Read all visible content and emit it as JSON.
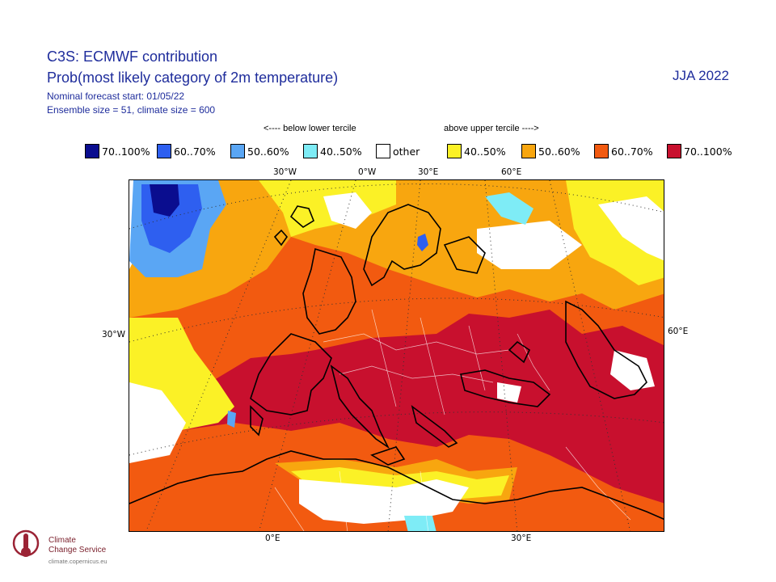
{
  "header": {
    "title_line1": "C3S: ECMWF contribution",
    "title_line2": "Prob(most likely category of 2m temperature)",
    "forecast_start": "Nominal forecast start: 01/05/22",
    "ensemble": "Ensemble size = 51, climate size = 600",
    "season": "JJA 2022"
  },
  "legend": {
    "below_label": "<---- below lower tercile",
    "above_label": "above upper tercile ---->",
    "items": [
      {
        "label": "70..100%",
        "color": "#0a0d8f"
      },
      {
        "label": "60..70%",
        "color": "#2e5ff0"
      },
      {
        "label": "50..60%",
        "color": "#5aa6f4"
      },
      {
        "label": "40..50%",
        "color": "#7eecf6"
      },
      {
        "label": "other",
        "color": "#ffffff"
      },
      {
        "label": "40..50%",
        "color": "#fbf126"
      },
      {
        "label": "50..60%",
        "color": "#f8a60f"
      },
      {
        "label": "60..70%",
        "color": "#f25a10"
      },
      {
        "label": "70..100%",
        "color": "#c8102e"
      }
    ]
  },
  "axes": {
    "top": [
      "30°W",
      "0°W",
      "30°E",
      "60°E"
    ],
    "bottom": [
      "0°E",
      "30°E"
    ],
    "left": "30°W",
    "right": "60°E"
  },
  "logo": {
    "name_line1": "Climate",
    "name_line2": "Change Service",
    "url": "climate.copernicus.eu"
  },
  "colors": {
    "title": "#1f2d9c",
    "coast": "#000000",
    "border": "#ffffff"
  }
}
